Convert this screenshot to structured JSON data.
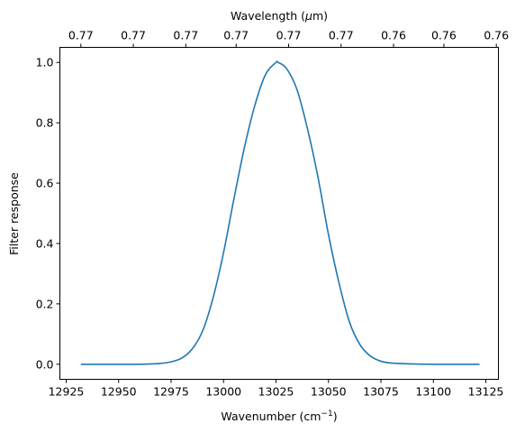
{
  "chart_data": {
    "type": "line",
    "title": "",
    "xlabel": "Wavenumber (cm",
    "xlabel_sup": "−1",
    "xlabel_end": ")",
    "ylabel": "Filter response",
    "top_xlabel": "Wavelength (",
    "top_xlabel_mu": "μ",
    "top_xlabel_end": "m)",
    "xlim": [
      12922,
      13131
    ],
    "ylim": [
      -0.05,
      1.05
    ],
    "xticks": [
      12925,
      12950,
      12975,
      13000,
      13025,
      13050,
      13075,
      13100,
      13125
    ],
    "xtick_labels": [
      "12925",
      "12950",
      "12975",
      "13000",
      "13025",
      "13050",
      "13075",
      "13100",
      "13125"
    ],
    "yticks": [
      0.0,
      0.2,
      0.4,
      0.6,
      0.8,
      1.0
    ],
    "ytick_labels": [
      "0.0",
      "0.2",
      "0.4",
      "0.6",
      "0.8",
      "1.0"
    ],
    "top_xticks": [
      12932,
      12957,
      12982,
      13006,
      13031,
      13056,
      13081,
      13105,
      13130
    ],
    "top_xtick_labels": [
      "0.77",
      "0.77",
      "0.77",
      "0.77",
      "0.77",
      "0.77",
      "0.76",
      "0.76",
      "0.76"
    ],
    "grid": false,
    "series": [
      {
        "color": "#1f77b4",
        "x": [
          12932,
          12940,
          12950,
          12960,
          12970,
          12975,
          12980,
          12985,
          12990,
          12995,
          13000,
          13005,
          13010,
          13015,
          13020,
          13025,
          13026,
          13030,
          13035,
          13040,
          13045,
          13050,
          13055,
          13060,
          13065,
          13070,
          13075,
          13080,
          13090,
          13100,
          13110,
          13122
        ],
        "y": [
          0.0,
          0.0,
          0.0,
          0.0,
          0.003,
          0.008,
          0.02,
          0.05,
          0.11,
          0.22,
          0.37,
          0.55,
          0.72,
          0.86,
          0.96,
          1.0,
          1.0,
          0.98,
          0.91,
          0.78,
          0.62,
          0.43,
          0.27,
          0.14,
          0.065,
          0.027,
          0.01,
          0.004,
          0.001,
          0.0,
          0.0,
          0.0
        ]
      }
    ]
  }
}
